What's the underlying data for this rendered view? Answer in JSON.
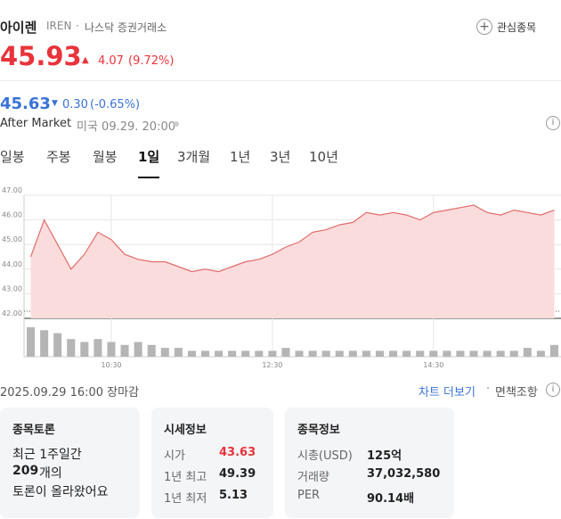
{
  "header": {
    "name": "아이렌",
    "ticker": "IREN",
    "separator": "·",
    "exchange": "나스닥 증권거래소",
    "watch": "관심종목"
  },
  "price": {
    "value": "45.93",
    "change": "4.07",
    "change_pct": "(9.72%)"
  },
  "after": {
    "value": "45.63",
    "change": "0.30",
    "change_pct": "(-0.65%)",
    "label": "After Market",
    "time": "미국 09.29. 20:00"
  },
  "tabs": [
    "일봉",
    "주봉",
    "월봉",
    "1일",
    "3개월",
    "1년",
    "3년",
    "10년"
  ],
  "active_tab": 3,
  "chart_data": {
    "type": "line",
    "color": "#e06c6c",
    "fill": "#fbdcdc",
    "volume_color": "#b5b5b5",
    "categories": [
      null,
      null,
      null,
      null,
      null,
      null,
      "10:30",
      null,
      null,
      null,
      null,
      null,
      null,
      null,
      null,
      null,
      null,
      null,
      "12:30",
      null,
      null,
      null,
      null,
      null,
      null,
      null,
      null,
      null,
      null,
      null,
      "14:30",
      null,
      null,
      null,
      null,
      null,
      null,
      null,
      null,
      null
    ],
    "values": [
      44.5,
      46.0,
      45.0,
      44.0,
      44.6,
      45.5,
      45.2,
      44.6,
      44.4,
      44.3,
      44.3,
      44.1,
      43.9,
      44.0,
      43.9,
      44.1,
      44.3,
      44.4,
      44.6,
      44.9,
      45.1,
      45.5,
      45.6,
      45.8,
      45.9,
      46.3,
      46.2,
      46.3,
      46.2,
      46.0,
      46.3,
      46.4,
      46.5,
      46.6,
      46.3,
      46.2,
      46.4,
      46.3,
      46.2,
      46.4
    ],
    "volume": [
      10,
      9,
      8,
      6,
      5,
      6,
      5,
      4,
      5,
      4,
      3,
      3,
      2,
      2,
      2,
      2,
      2,
      2,
      2,
      3,
      2,
      2,
      2,
      2,
      2,
      2,
      2,
      2,
      2,
      2,
      2,
      2,
      2,
      2,
      2,
      2,
      2,
      3,
      2,
      4
    ],
    "ylim": [
      42,
      47
    ],
    "yticks": [
      {
        "value": 42,
        "label": "42.00"
      },
      {
        "value": 43,
        "label": "43.00"
      },
      {
        "value": 44,
        "label": "44.00"
      },
      {
        "value": 45,
        "label": "45.00"
      },
      {
        "value": 46,
        "label": "46.00"
      },
      {
        "value": 47,
        "label": "47.00"
      }
    ]
  },
  "status": {
    "date": "2025.09.29 16:00 장마감",
    "more": "차트 더보기",
    "separator": "·",
    "disclaimer": "면책조항"
  },
  "cards": [
    {
      "title": "종목토론",
      "lines": [
        "최근 1주일간",
        "209",
        "개의",
        "토론이 올라왔어요"
      ]
    },
    {
      "title": "시세정보",
      "rows": [
        [
          "시가",
          "43.63"
        ],
        [
          "1년 최고",
          "49.39"
        ],
        [
          "1년 최저",
          "5.13"
        ]
      ]
    },
    {
      "title": "종목정보",
      "rows": [
        [
          "시총(USD)",
          "125억"
        ],
        [
          "거래량",
          "37,032,580"
        ],
        [
          "PER",
          "90.14배"
        ]
      ]
    }
  ]
}
